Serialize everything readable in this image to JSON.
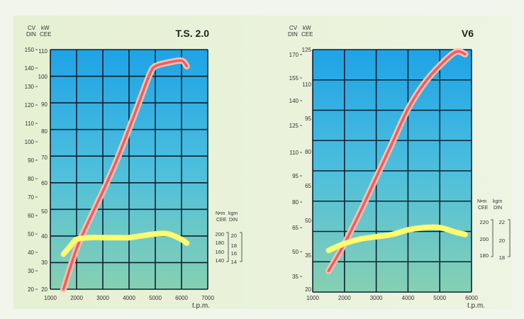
{
  "chart_data": [
    {
      "type": "line",
      "title": "T.S. 2.0",
      "xlabel": "t.p.m.",
      "x_ticks": [
        "1000",
        "2000",
        "3000",
        "4000",
        "5000",
        "6000",
        "7000"
      ],
      "xlim": [
        1000,
        7000
      ],
      "left_axes": {
        "cv": {
          "label_top": "CV",
          "label_bottom": "DIN",
          "ticks": [
            "20",
            "30",
            "40",
            "50",
            "60",
            "70",
            "80",
            "90",
            "100",
            "110",
            "120",
            "130",
            "140",
            "150"
          ],
          "range": [
            20,
            150
          ]
        },
        "kw": {
          "label_top": "kW",
          "label_bottom": "CEE",
          "ticks": [
            "20",
            "30",
            "40",
            "50",
            "60",
            "70",
            "80",
            "90",
            "100",
            "110"
          ]
        }
      },
      "right_axes": {
        "nm": {
          "label_top": "N•m",
          "label_bottom": "CEE",
          "ticks": [
            "200",
            "180",
            "160",
            "140"
          ]
        },
        "kgm": {
          "label_top": "kgm",
          "label_bottom": "DIN",
          "ticks": [
            "20",
            "18",
            "16",
            "14"
          ]
        }
      },
      "series": [
        {
          "color": "#f05a6a",
          "axis": "cv",
          "x": [
            1500,
            2000,
            2500,
            3000,
            3500,
            4000,
            4500,
            4800,
            5000,
            5500,
            6000,
            6200
          ],
          "y": [
            20,
            42,
            58,
            73,
            89,
            107,
            126,
            137,
            141,
            143,
            144,
            141
          ]
        },
        {
          "color": "#ffff66",
          "axis": "torque",
          "x": [
            1500,
            1800,
            2000,
            2500,
            3000,
            3500,
            4000,
            4500,
            5000,
            5500,
            6000,
            6200
          ],
          "y": [
            39,
            44,
            47,
            48,
            48,
            48,
            48,
            49,
            50,
            50,
            47,
            45
          ]
        }
      ]
    },
    {
      "type": "line",
      "title": "V6",
      "xlabel": "t.p.m.",
      "x_ticks": [
        "1000",
        "2000",
        "3000",
        "4000",
        "5000",
        "6000"
      ],
      "xlim": [
        1000,
        6000
      ],
      "left_axes": {
        "cv": {
          "label_top": "CV",
          "label_bottom": "DIN",
          "ticks": [
            "170",
            "155",
            "140",
            "125",
            "110",
            "95",
            "80",
            "65",
            "50",
            "35"
          ]
        },
        "kw": {
          "label_top": "kW",
          "label_bottom": "CEE",
          "ticks": [
            "125",
            "110",
            "95",
            "80",
            "65",
            "50",
            "35",
            "20"
          ]
        }
      },
      "right_axes": {
        "nm": {
          "label_top": "N•m",
          "label_bottom": "CEE",
          "ticks": [
            "220",
            "200",
            "180"
          ]
        },
        "kgm": {
          "label_top": "kgm",
          "label_bottom": "DIN",
          "ticks": [
            "22",
            "20",
            "18"
          ]
        }
      },
      "series": [
        {
          "color": "#f05a6a",
          "axis": "kw",
          "x": [
            1500,
            2000,
            2500,
            3000,
            3500,
            4000,
            4500,
            5000,
            5500,
            5800
          ],
          "y": [
            28,
            40,
            54,
            69,
            84,
            99,
            110,
            118,
            124,
            123
          ]
        },
        {
          "color": "#ffff66",
          "axis": "kw",
          "x": [
            1500,
            2000,
            2500,
            3000,
            3500,
            4000,
            4500,
            5000,
            5500,
            5800
          ],
          "y": [
            37,
            40,
            42,
            43,
            44,
            46,
            47,
            47,
            45,
            44
          ]
        }
      ]
    }
  ]
}
